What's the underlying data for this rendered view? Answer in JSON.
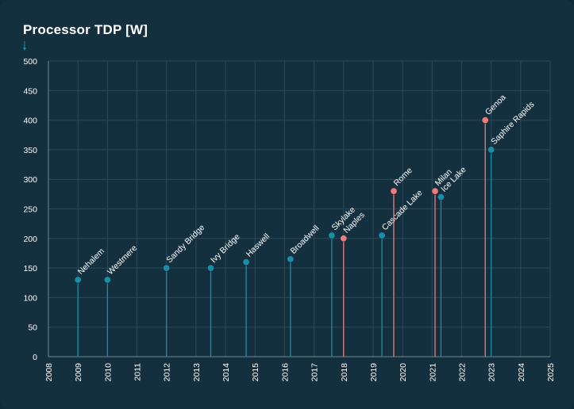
{
  "chart_data": {
    "type": "scatter",
    "title": "Processor TDP [W]",
    "xlabel": "",
    "ylabel": "",
    "xlim": [
      2008,
      2025
    ],
    "ylim": [
      0,
      500
    ],
    "x_ticks": [
      "2008",
      "2009",
      "2010",
      "2011",
      "2012",
      "2013",
      "2014",
      "2015",
      "2016",
      "2017",
      "2018",
      "2019",
      "2020",
      "2021",
      "2022",
      "2023",
      "2024",
      "2025"
    ],
    "y_ticks": [
      0,
      50,
      100,
      150,
      200,
      250,
      300,
      350,
      400,
      450,
      500
    ],
    "grid": true,
    "colors": {
      "intel": "#1b8ea7",
      "amd": "#f07b7b",
      "grid": "#2c4a59",
      "axis": "#6f8a96",
      "background": "#14303f"
    },
    "series": [
      {
        "color_key": "intel",
        "points": [
          {
            "label": "Nehalem",
            "x": 2009.0,
            "y": 130
          },
          {
            "label": "Westmere",
            "x": 2010.0,
            "y": 130
          },
          {
            "label": "Sandy Bridge",
            "x": 2012.0,
            "y": 150
          },
          {
            "label": "Ivy Bridge",
            "x": 2013.5,
            "y": 150
          },
          {
            "label": "Haswell",
            "x": 2014.7,
            "y": 160
          },
          {
            "label": "Broadwell",
            "x": 2016.2,
            "y": 165
          },
          {
            "label": "Skylake",
            "x": 2017.6,
            "y": 205
          },
          {
            "label": "Cascade Lake",
            "x": 2019.3,
            "y": 205
          },
          {
            "label": "Ice Lake",
            "x": 2021.3,
            "y": 270
          },
          {
            "label": "Saphire Rapids",
            "x": 2023.0,
            "y": 350
          }
        ]
      },
      {
        "color_key": "amd",
        "points": [
          {
            "label": "Naples",
            "x": 2018.0,
            "y": 200
          },
          {
            "label": "Rome",
            "x": 2019.7,
            "y": 280
          },
          {
            "label": "Milan",
            "x": 2021.1,
            "y": 280
          },
          {
            "label": "Genoa",
            "x": 2022.8,
            "y": 400
          }
        ]
      }
    ]
  }
}
